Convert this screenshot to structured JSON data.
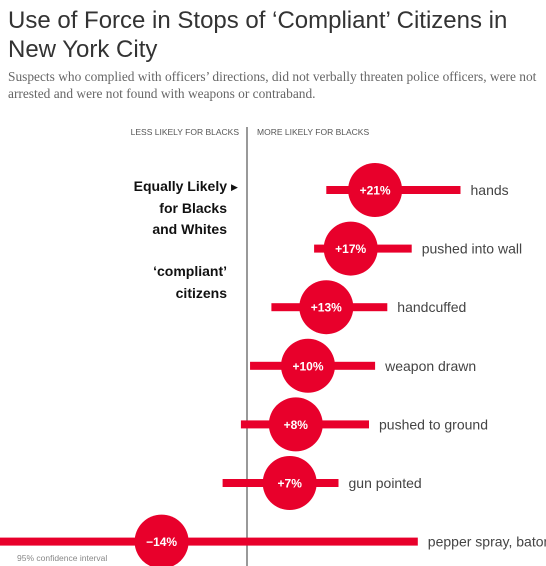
{
  "title": "Use of Force in Stops of ‘Compliant’ Citizens in New York City",
  "subtitle": "Suspects who complied with officers’ directions, did not verbally threaten police officers, were not arrested and were not found with weapons or contraband.",
  "axis_left_label": "LESS LIKELY FOR BLACKS",
  "axis_right_label": "MORE LIKELY FOR BLACKS",
  "annotation": {
    "line1": "Equally Likely",
    "arrow": "▶",
    "line2": "for Blacks",
    "line3": "and Whites",
    "line4": "‘compliant’",
    "line5": "citizens"
  },
  "footnote": "95% confidence interval",
  "colors": {
    "accent": "#e8002b",
    "axis": "#333333",
    "text": "#444444"
  },
  "chart_data": {
    "type": "dot-range",
    "unit": "%",
    "baseline": 0,
    "rows": [
      {
        "label": "hands",
        "value": 21,
        "value_label": "+21%",
        "ci": [
          13,
          35
        ]
      },
      {
        "label": "pushed into wall",
        "value": 17,
        "value_label": "+17%",
        "ci": [
          11,
          27
        ]
      },
      {
        "label": "handcuffed",
        "value": 13,
        "value_label": "+13%",
        "ci": [
          4,
          23
        ]
      },
      {
        "label": "weapon drawn",
        "value": 10,
        "value_label": "+10%",
        "ci": [
          0.5,
          21
        ]
      },
      {
        "label": "pushed to ground",
        "value": 8,
        "value_label": "+8%",
        "ci": [
          -1,
          20
        ]
      },
      {
        "label": "gun pointed",
        "value": 7,
        "value_label": "+7%",
        "ci": [
          -4,
          15
        ]
      },
      {
        "label": "pepper spray, baton",
        "value": -14,
        "value_label": "−14%",
        "ci": [
          -45,
          28
        ]
      }
    ]
  }
}
